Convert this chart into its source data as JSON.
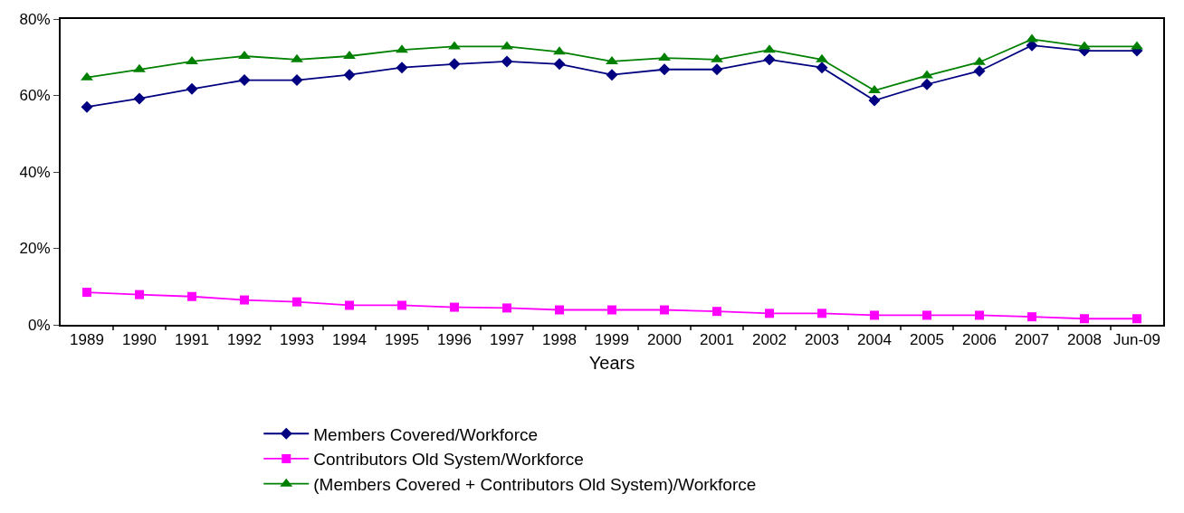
{
  "chart_data": {
    "type": "line",
    "xlabel": "Years",
    "categories": [
      "1989",
      "1990",
      "1991",
      "1992",
      "1993",
      "1994",
      "1995",
      "1996",
      "1997",
      "1998",
      "1999",
      "2000",
      "2001",
      "2002",
      "2003",
      "2004",
      "2005",
      "2006",
      "2007",
      "2008",
      "Jun-09"
    ],
    "series": [
      {
        "name": "Members Covered/Workforce",
        "color": "#000080",
        "marker": "diamond",
        "values": [
          57,
          59.2,
          61.7,
          64,
          64,
          65.4,
          67.3,
          68.2,
          68.9,
          68.2,
          65.4,
          66.8,
          66.8,
          69.4,
          67.3,
          58.7,
          62.9,
          66.4,
          73.1,
          71.7,
          71.7
        ]
      },
      {
        "name": "Contributors Old System/Workforce",
        "color": "#ff00ff",
        "marker": "square",
        "values": [
          8.5,
          7.9,
          7.4,
          6.5,
          6.0,
          5.1,
          5.1,
          4.6,
          4.4,
          3.9,
          3.9,
          3.9,
          3.5,
          3.0,
          3.0,
          2.5,
          2.5,
          2.5,
          2.1,
          1.6,
          1.6
        ]
      },
      {
        "name": "(Members Covered + Contributors Old System)/Workforce",
        "color": "#008000",
        "marker": "triangle",
        "values": [
          64.7,
          66.8,
          68.9,
          70.3,
          69.4,
          70.3,
          71.9,
          72.8,
          72.8,
          71.4,
          68.9,
          69.8,
          69.4,
          71.9,
          69.4,
          61.3,
          65.2,
          68.7,
          74.7,
          72.8,
          72.8
        ]
      }
    ],
    "ylim": [
      0,
      80
    ],
    "yticks": [
      {
        "value": 0,
        "label": "0%"
      },
      {
        "value": 20,
        "label": "20%"
      },
      {
        "value": 40,
        "label": "40%"
      },
      {
        "value": 60,
        "label": "60%"
      },
      {
        "value": 80,
        "label": "80%"
      }
    ],
    "grid": false,
    "legend": "bottom",
    "line_style": "solid"
  }
}
